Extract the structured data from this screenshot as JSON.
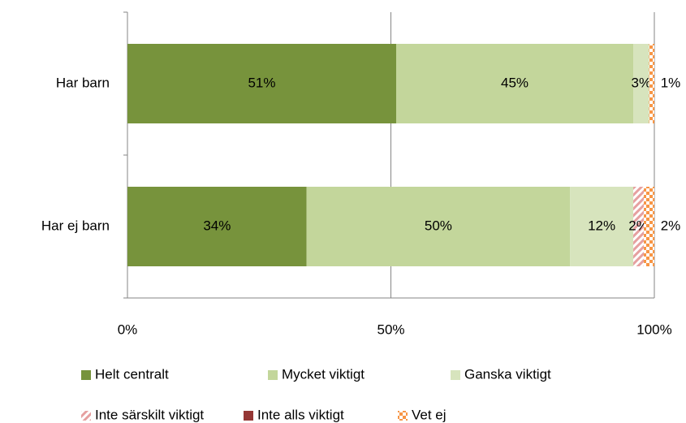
{
  "chart_data": {
    "type": "stacked_barh",
    "categories": [
      "Har barn",
      "Har ej barn"
    ],
    "series": [
      {
        "name": "Helt centralt",
        "color": "#77933c",
        "values": [
          51,
          34
        ],
        "value_labels": [
          "51%",
          "34%"
        ]
      },
      {
        "name": "Mycket viktigt",
        "color": "#c3d69b",
        "values": [
          45,
          50
        ],
        "value_labels": [
          "45%",
          "50%"
        ]
      },
      {
        "name": "Ganska viktigt",
        "color": "#d7e4bd",
        "values": [
          3,
          12
        ],
        "value_labels": [
          "3%",
          "12%"
        ]
      },
      {
        "name": "Inte särskilt viktigt",
        "color": "#e6a0a0",
        "fill_style": "hatch",
        "values": [
          0,
          2
        ],
        "value_labels": [
          null,
          "2%"
        ]
      },
      {
        "name": "Inte alls viktigt",
        "color": "#953735",
        "values": [
          0,
          0
        ],
        "value_labels": [
          null,
          null
        ]
      },
      {
        "name": "Vet ej",
        "color": "#f79646",
        "fill_style": "checker",
        "values": [
          1,
          2
        ],
        "value_labels": [
          "1%",
          "2%"
        ]
      }
    ],
    "xlim": [
      0,
      100
    ],
    "xticks": [
      {
        "value": 0,
        "label": "0%"
      },
      {
        "value": 50,
        "label": "50%"
      },
      {
        "value": 100,
        "label": "100%"
      }
    ],
    "grid": true,
    "legend": "bottom"
  }
}
